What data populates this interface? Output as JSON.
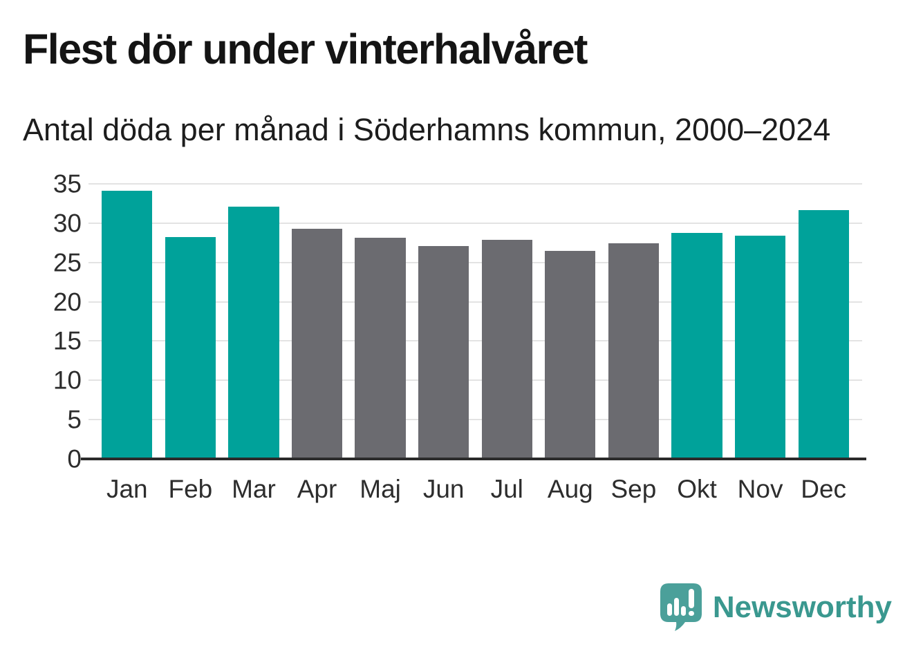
{
  "header": {
    "title": "Flest dör under vinterhalvåret",
    "subtitle": "Antal döda per månad i Söderhamns kommun, 2000–2024"
  },
  "chart_data": {
    "type": "bar",
    "title": "Flest dör under vinterhalvåret",
    "subtitle": "Antal döda per månad i Söderhamns kommun, 2000–2024",
    "categories": [
      "Jan",
      "Feb",
      "Mar",
      "Apr",
      "Maj",
      "Jun",
      "Jul",
      "Aug",
      "Sep",
      "Okt",
      "Nov",
      "Dec"
    ],
    "values": [
      34.1,
      28.2,
      32.1,
      29.3,
      28.1,
      27.1,
      27.9,
      26.5,
      27.4,
      28.8,
      28.4,
      31.7
    ],
    "bar_colors": [
      "#00a29a",
      "#00a29a",
      "#00a29a",
      "#6b6b70",
      "#6b6b70",
      "#6b6b70",
      "#6b6b70",
      "#6b6b70",
      "#6b6b70",
      "#00a29a",
      "#00a29a",
      "#00a29a"
    ],
    "highlight_color": "#00a29a",
    "muted_color": "#6b6b70",
    "xlabel": "",
    "ylabel": "",
    "ylim": [
      0,
      35
    ],
    "yticks": [
      0,
      5,
      10,
      15,
      20,
      25,
      30,
      35
    ],
    "grid": true,
    "legend": false,
    "gridline_color": "#e3e3e3",
    "axis_color": "#2b2b2b"
  },
  "branding": {
    "logo_text": "Newsworthy",
    "logo_icon": "newsworthy-speech-bubble-chart-icon",
    "logo_text_color": "#3a988f",
    "logo_bubble_color": "#4ba09a"
  }
}
